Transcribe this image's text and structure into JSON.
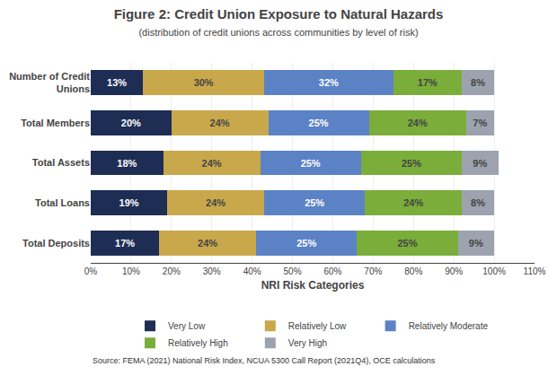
{
  "chart_data": {
    "type": "bar",
    "orientation": "horizontal",
    "stacked": true,
    "title": "Figure 2: Credit Union Exposure to Natural Hazards",
    "subtitle": "(distribution of credit unions across communities by level of risk)",
    "x_label": "NRI Risk Categories",
    "annotations": [
      "Source: FEMA (2021) National Risk Index, NCUA 5300 Call Report (2021Q4), OCE calculations"
    ],
    "categories": [
      "Number of Credit\nUnions",
      "Total Members",
      "Total Assets",
      "Total Loans",
      "Total Deposits"
    ],
    "series": [
      {
        "name": "Very Low",
        "color": "#1e2d54",
        "values": [
          13,
          20,
          18,
          19,
          17
        ],
        "value_labels": [
          "13%",
          "20%",
          "18%",
          "19%",
          "17%"
        ]
      },
      {
        "name": "Relatively Low",
        "color": "#c9a84c",
        "values": [
          30,
          24,
          24,
          24,
          24
        ],
        "value_labels": [
          "30%",
          "24%",
          "24%",
          "24%",
          "24%"
        ]
      },
      {
        "name": "Relatively Moderate",
        "color": "#5b82c5",
        "values": [
          32,
          25,
          25,
          25,
          25
        ],
        "value_labels": [
          "32%",
          "25%",
          "25%",
          "25%",
          "25%"
        ]
      },
      {
        "name": "Relatively High",
        "color": "#7aad3a",
        "values": [
          17,
          24,
          25,
          24,
          25
        ],
        "value_labels": [
          "17%",
          "24%",
          "25%",
          "24%",
          "25%"
        ]
      },
      {
        "name": "Very High",
        "color": "#9ca3af",
        "values": [
          8,
          7,
          9,
          8,
          9
        ],
        "value_labels": [
          "8%",
          "7%",
          "9%",
          "8%",
          "9%"
        ]
      }
    ],
    "xlim": [
      0,
      110
    ],
    "xticks": [
      {
        "value": 0,
        "label": "0%"
      },
      {
        "value": 10,
        "label": "10%"
      },
      {
        "value": 20,
        "label": "20%"
      },
      {
        "value": 30,
        "label": "30%"
      },
      {
        "value": 40,
        "label": "40%"
      },
      {
        "value": 50,
        "label": "50%"
      },
      {
        "value": 60,
        "label": "60%"
      },
      {
        "value": 70,
        "label": "70%"
      },
      {
        "value": 80,
        "label": "80%"
      },
      {
        "value": 90,
        "label": "90%"
      },
      {
        "value": 100,
        "label": "100%"
      },
      {
        "value": 110,
        "label": "110%"
      }
    ],
    "grid": true,
    "data_labels": true,
    "legend": "bottom"
  }
}
